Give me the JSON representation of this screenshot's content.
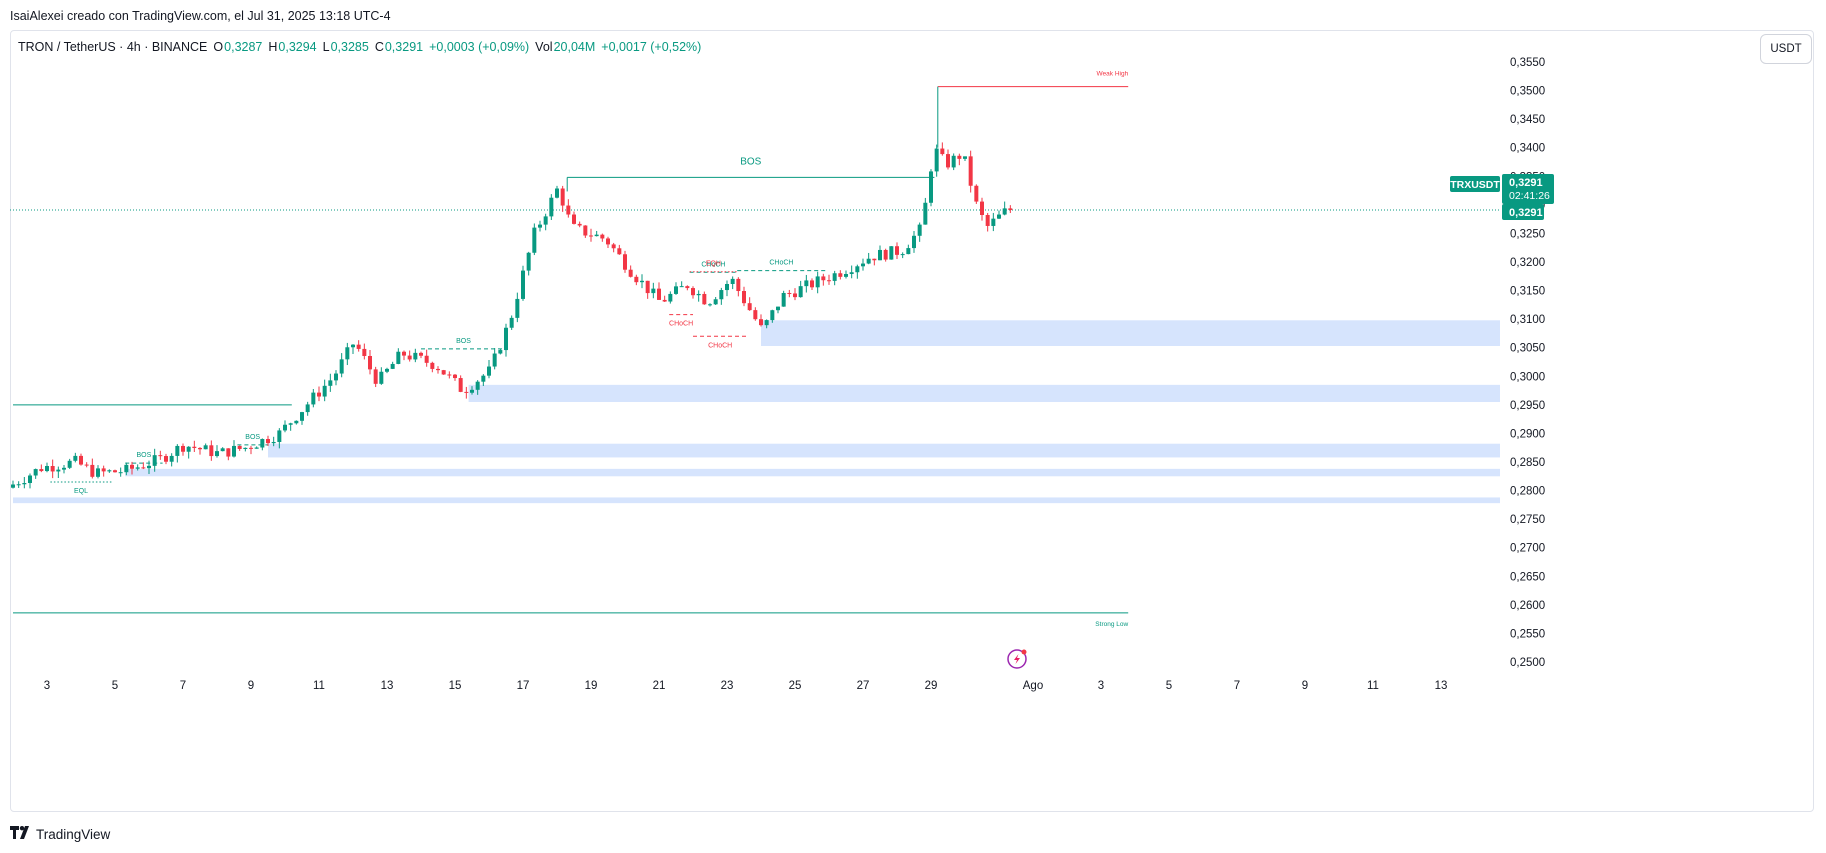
{
  "caption": "IsaiAlexei creado con TradingView.com, el Jul 31, 2025 13:18 UTC-4",
  "legend": {
    "symbol": "TRON / TetherUS · 4h · BINANCE",
    "o_label": "O",
    "o_value": "0,3287",
    "h_label": "H",
    "h_value": "0,3294",
    "l_label": "L",
    "l_value": "0,3285",
    "c_label": "C",
    "c_value": "0,3291",
    "change": "+0,0003 (+0,09%)",
    "vol_label": "Vol",
    "vol_value": "20,04M",
    "vol_change": "+0,0017 (+0,52%)"
  },
  "currency_button": "USDT",
  "footer_brand": "TradingView",
  "colors": {
    "up": "#089981",
    "down": "#f23645",
    "zone": "#d6e4fd",
    "accent": "#2962ff"
  },
  "chart_data": {
    "type": "candlestick",
    "symbol": "TRXUSDT",
    "interval": "4h",
    "ylim": [
      0.2475,
      0.3575
    ],
    "y_ticks": [
      "0,2500",
      "0,2550",
      "0,2600",
      "0,2650",
      "0,2700",
      "0,2750",
      "0,2800",
      "0,2850",
      "0,2900",
      "0,2950",
      "0,3000",
      "0,3050",
      "0,3100",
      "0,3150",
      "0,3200",
      "0,3250",
      "0,3300",
      "0,3350",
      "0,3400",
      "0,3450",
      "0,3500",
      "0,3550"
    ],
    "x_ticks": [
      "3",
      "5",
      "7",
      "9",
      "11",
      "13",
      "15",
      "17",
      "19",
      "21",
      "23",
      "25",
      "27",
      "29",
      "Ago",
      "3",
      "5",
      "7",
      "9",
      "11",
      "13"
    ],
    "x_tick_days": [
      3,
      5,
      7,
      9,
      11,
      13,
      15,
      17,
      19,
      21,
      23,
      25,
      27,
      29,
      32,
      34,
      36,
      38,
      40,
      42,
      44
    ],
    "price_label": {
      "symbol_tag": "TRXUSDT",
      "price": "0,3291",
      "countdown": "02:41:26",
      "price2": "0,3291",
      "value": 0.3291
    },
    "anchors": [
      [
        2.0,
        0.2805
      ],
      [
        3.0,
        0.284
      ],
      [
        4.0,
        0.285
      ],
      [
        4.6,
        0.283
      ],
      [
        5.5,
        0.2835
      ],
      [
        6.5,
        0.2855
      ],
      [
        7.2,
        0.288
      ],
      [
        8.2,
        0.2865
      ],
      [
        9.0,
        0.2875
      ],
      [
        10.0,
        0.29
      ],
      [
        10.8,
        0.295
      ],
      [
        11.6,
        0.3
      ],
      [
        12.2,
        0.306
      ],
      [
        12.9,
        0.299
      ],
      [
        13.6,
        0.304
      ],
      [
        14.6,
        0.302
      ],
      [
        15.4,
        0.2975
      ],
      [
        16.2,
        0.301
      ],
      [
        16.8,
        0.31
      ],
      [
        17.5,
        0.325
      ],
      [
        18.2,
        0.333
      ],
      [
        18.6,
        0.326
      ],
      [
        19.6,
        0.324
      ],
      [
        20.4,
        0.318
      ],
      [
        21.2,
        0.313
      ],
      [
        22.0,
        0.316
      ],
      [
        22.6,
        0.313
      ],
      [
        23.3,
        0.317
      ],
      [
        24.2,
        0.308
      ],
      [
        24.8,
        0.314
      ],
      [
        25.6,
        0.316
      ],
      [
        26.4,
        0.318
      ],
      [
        27.4,
        0.321
      ],
      [
        28.3,
        0.322
      ],
      [
        28.9,
        0.326
      ],
      [
        29.25,
        0.34
      ],
      [
        29.6,
        0.337
      ],
      [
        30.1,
        0.339
      ],
      [
        30.5,
        0.33
      ],
      [
        30.8,
        0.326
      ],
      [
        31.4,
        0.3291
      ]
    ],
    "zones": [
      {
        "day_start": 24.0,
        "low": 0.3053,
        "high": 0.3098
      },
      {
        "day_start": 15.4,
        "low": 0.2955,
        "high": 0.2985
      },
      {
        "day_start": 9.5,
        "low": 0.2858,
        "high": 0.2882
      },
      {
        "day_start": 5.3,
        "low": 0.2825,
        "high": 0.2838
      },
      {
        "day_start": 2.0,
        "low": 0.2778,
        "high": 0.2788
      }
    ],
    "lines": [
      {
        "label": "BOS",
        "day_start": 18.3,
        "day_end": 29.1,
        "price": 0.3348,
        "color": "up",
        "style": "solid",
        "label_pos": "above"
      },
      {
        "label": "Weak High",
        "day_start": 29.2,
        "day_end": 34.8,
        "price": 0.3507,
        "color": "down",
        "style": "solid",
        "label_pos": "above-end"
      },
      {
        "label": "Strong Low",
        "day_start": 2.0,
        "day_end": 34.8,
        "price": 0.2586,
        "color": "up",
        "style": "solid",
        "label_pos": "below-end"
      },
      {
        "label": "",
        "day_start": 2.0,
        "day_end": 10.2,
        "price": 0.295,
        "color": "up",
        "style": "solid",
        "label_pos": "none"
      },
      {
        "label": "BOS",
        "day_start": 14.0,
        "day_end": 16.5,
        "price": 0.3048,
        "color": "up",
        "style": "dashed",
        "label_pos": "above"
      },
      {
        "label": "BOS",
        "day_start": 8.6,
        "day_end": 9.5,
        "price": 0.288,
        "color": "up",
        "style": "dashed",
        "label_pos": "above"
      },
      {
        "label": "BOS",
        "day_start": 5.3,
        "day_end": 6.4,
        "price": 0.2848,
        "color": "up",
        "style": "dashed",
        "label_pos": "above"
      },
      {
        "label": "EQL",
        "day_start": 3.1,
        "day_end": 4.9,
        "price": 0.2815,
        "color": "up",
        "style": "dotted",
        "label_pos": "below"
      },
      {
        "label": "CHoCH",
        "day_start": 21.9,
        "day_end": 23.3,
        "price": 0.3182,
        "color": "up",
        "style": "dashed",
        "label_pos": "above"
      },
      {
        "label": "CHoCH",
        "day_start": 23.3,
        "day_end": 25.9,
        "price": 0.3185,
        "color": "up",
        "style": "dashed",
        "label_pos": "above"
      },
      {
        "label": "EQH",
        "day_start": 21.9,
        "day_end": 23.3,
        "price": 0.3183,
        "color": "down",
        "style": "dotted",
        "label_pos": "above"
      },
      {
        "label": "CHoCH",
        "day_start": 21.3,
        "day_end": 22.0,
        "price": 0.3108,
        "color": "down",
        "style": "dashed",
        "label_pos": "below"
      },
      {
        "label": "CHoCH",
        "day_start": 22.0,
        "day_end": 23.6,
        "price": 0.307,
        "color": "down",
        "style": "dashed",
        "label_pos": "below"
      }
    ]
  }
}
